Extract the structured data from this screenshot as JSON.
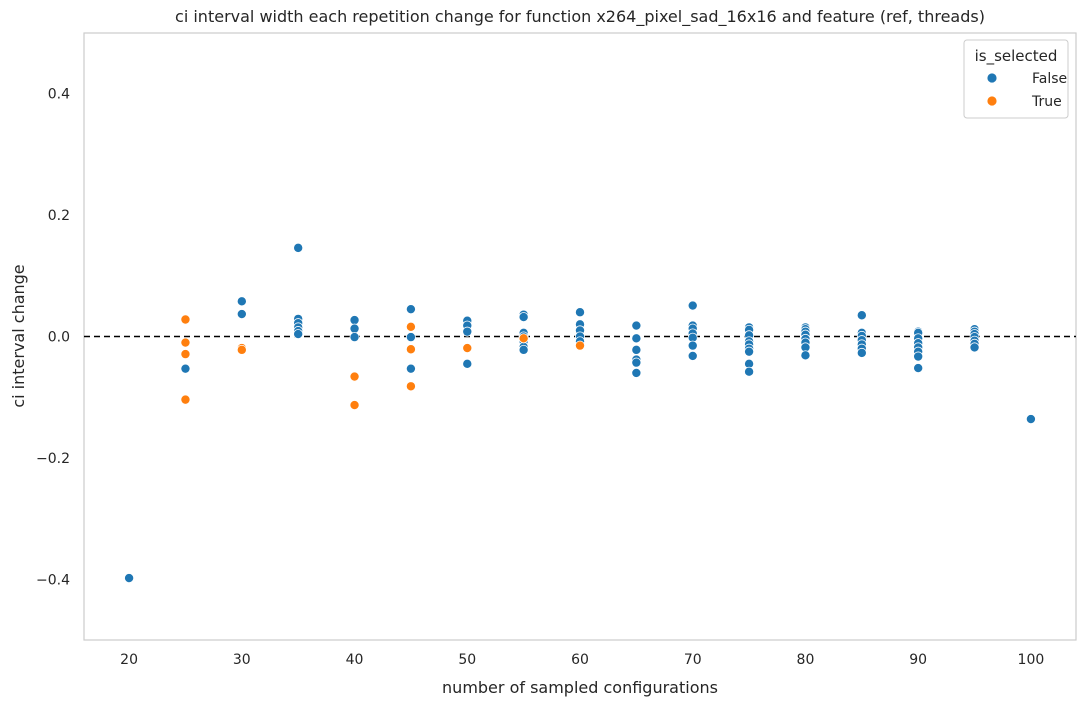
{
  "chart_data": {
    "type": "scatter",
    "title": "ci interval width each repetition change for function x264_pixel_sad_16x16 and feature (ref, threads)",
    "xlabel": "number of sampled configurations",
    "ylabel": "ci interval change",
    "xlim": [
      16,
      104
    ],
    "ylim": [
      -0.5,
      0.5
    ],
    "xticks": [
      20,
      30,
      40,
      50,
      60,
      70,
      80,
      90,
      100
    ],
    "yticks": [
      0.4,
      0.2,
      0.0,
      -0.2,
      -0.4
    ],
    "ytick_labels": [
      "0.4",
      "0.2",
      "0.0",
      "−0.2",
      "−0.4"
    ],
    "grid": false,
    "reference_line": {
      "y": 0.0,
      "style": "dashed",
      "color": "#000000"
    },
    "legend": {
      "title": "is_selected",
      "placement": "top-right"
    },
    "series": [
      {
        "name": "False",
        "color": "#1f77b4",
        "points": [
          [
            20,
            -0.398
          ],
          [
            25,
            -0.053
          ],
          [
            30,
            0.058
          ],
          [
            30,
            0.037
          ],
          [
            35,
            0.146
          ],
          [
            35,
            0.029
          ],
          [
            35,
            0.022
          ],
          [
            35,
            0.015
          ],
          [
            35,
            0.009
          ],
          [
            35,
            0.004
          ],
          [
            40,
            0.027
          ],
          [
            40,
            0.013
          ],
          [
            40,
            -0.001
          ],
          [
            45,
            0.045
          ],
          [
            45,
            -0.001
          ],
          [
            45,
            -0.053
          ],
          [
            50,
            0.026
          ],
          [
            50,
            0.018
          ],
          [
            50,
            0.008
          ],
          [
            50,
            -0.045
          ],
          [
            55,
            0.036
          ],
          [
            55,
            0.032
          ],
          [
            55,
            0.006
          ],
          [
            55,
            0.0
          ],
          [
            55,
            -0.008
          ],
          [
            55,
            -0.017
          ],
          [
            55,
            -0.022
          ],
          [
            60,
            0.04
          ],
          [
            60,
            0.02
          ],
          [
            60,
            0.01
          ],
          [
            60,
            0.0
          ],
          [
            60,
            -0.008
          ],
          [
            65,
            0.018
          ],
          [
            65,
            -0.003
          ],
          [
            65,
            -0.022
          ],
          [
            65,
            -0.038
          ],
          [
            65,
            -0.043
          ],
          [
            65,
            -0.06
          ],
          [
            70,
            0.051
          ],
          [
            70,
            0.018
          ],
          [
            70,
            0.013
          ],
          [
            70,
            0.005
          ],
          [
            70,
            -0.002
          ],
          [
            70,
            -0.015
          ],
          [
            70,
            -0.032
          ],
          [
            75,
            0.015
          ],
          [
            75,
            0.011
          ],
          [
            75,
            0.002
          ],
          [
            75,
            -0.008
          ],
          [
            75,
            -0.013
          ],
          [
            75,
            -0.02
          ],
          [
            75,
            -0.025
          ],
          [
            75,
            -0.045
          ],
          [
            75,
            -0.058
          ],
          [
            80,
            0.015
          ],
          [
            80,
            0.012
          ],
          [
            80,
            0.008
          ],
          [
            80,
            0.003
          ],
          [
            80,
            -0.004
          ],
          [
            80,
            -0.01
          ],
          [
            80,
            -0.018
          ],
          [
            80,
            -0.031
          ],
          [
            85,
            0.035
          ],
          [
            85,
            0.006
          ],
          [
            85,
            0.001
          ],
          [
            85,
            -0.006
          ],
          [
            85,
            -0.013
          ],
          [
            85,
            -0.02
          ],
          [
            85,
            -0.027
          ],
          [
            90,
            0.008
          ],
          [
            90,
            0.006
          ],
          [
            90,
            -0.003
          ],
          [
            90,
            -0.011
          ],
          [
            90,
            -0.018
          ],
          [
            90,
            -0.025
          ],
          [
            90,
            -0.033
          ],
          [
            90,
            -0.052
          ],
          [
            95,
            0.012
          ],
          [
            95,
            0.008
          ],
          [
            95,
            0.004
          ],
          [
            95,
            -0.001
          ],
          [
            95,
            -0.007
          ],
          [
            95,
            -0.012
          ],
          [
            95,
            -0.018
          ],
          [
            100,
            -0.136
          ]
        ]
      },
      {
        "name": "True",
        "color": "#ff7f0e",
        "points": [
          [
            25,
            0.028
          ],
          [
            25,
            -0.01
          ],
          [
            25,
            -0.029
          ],
          [
            25,
            -0.104
          ],
          [
            30,
            -0.019
          ],
          [
            30,
            -0.022
          ],
          [
            40,
            -0.066
          ],
          [
            40,
            -0.113
          ],
          [
            45,
            0.016
          ],
          [
            45,
            -0.021
          ],
          [
            45,
            -0.082
          ],
          [
            50,
            -0.019
          ],
          [
            55,
            -0.003
          ],
          [
            60,
            -0.015
          ]
        ]
      }
    ]
  }
}
